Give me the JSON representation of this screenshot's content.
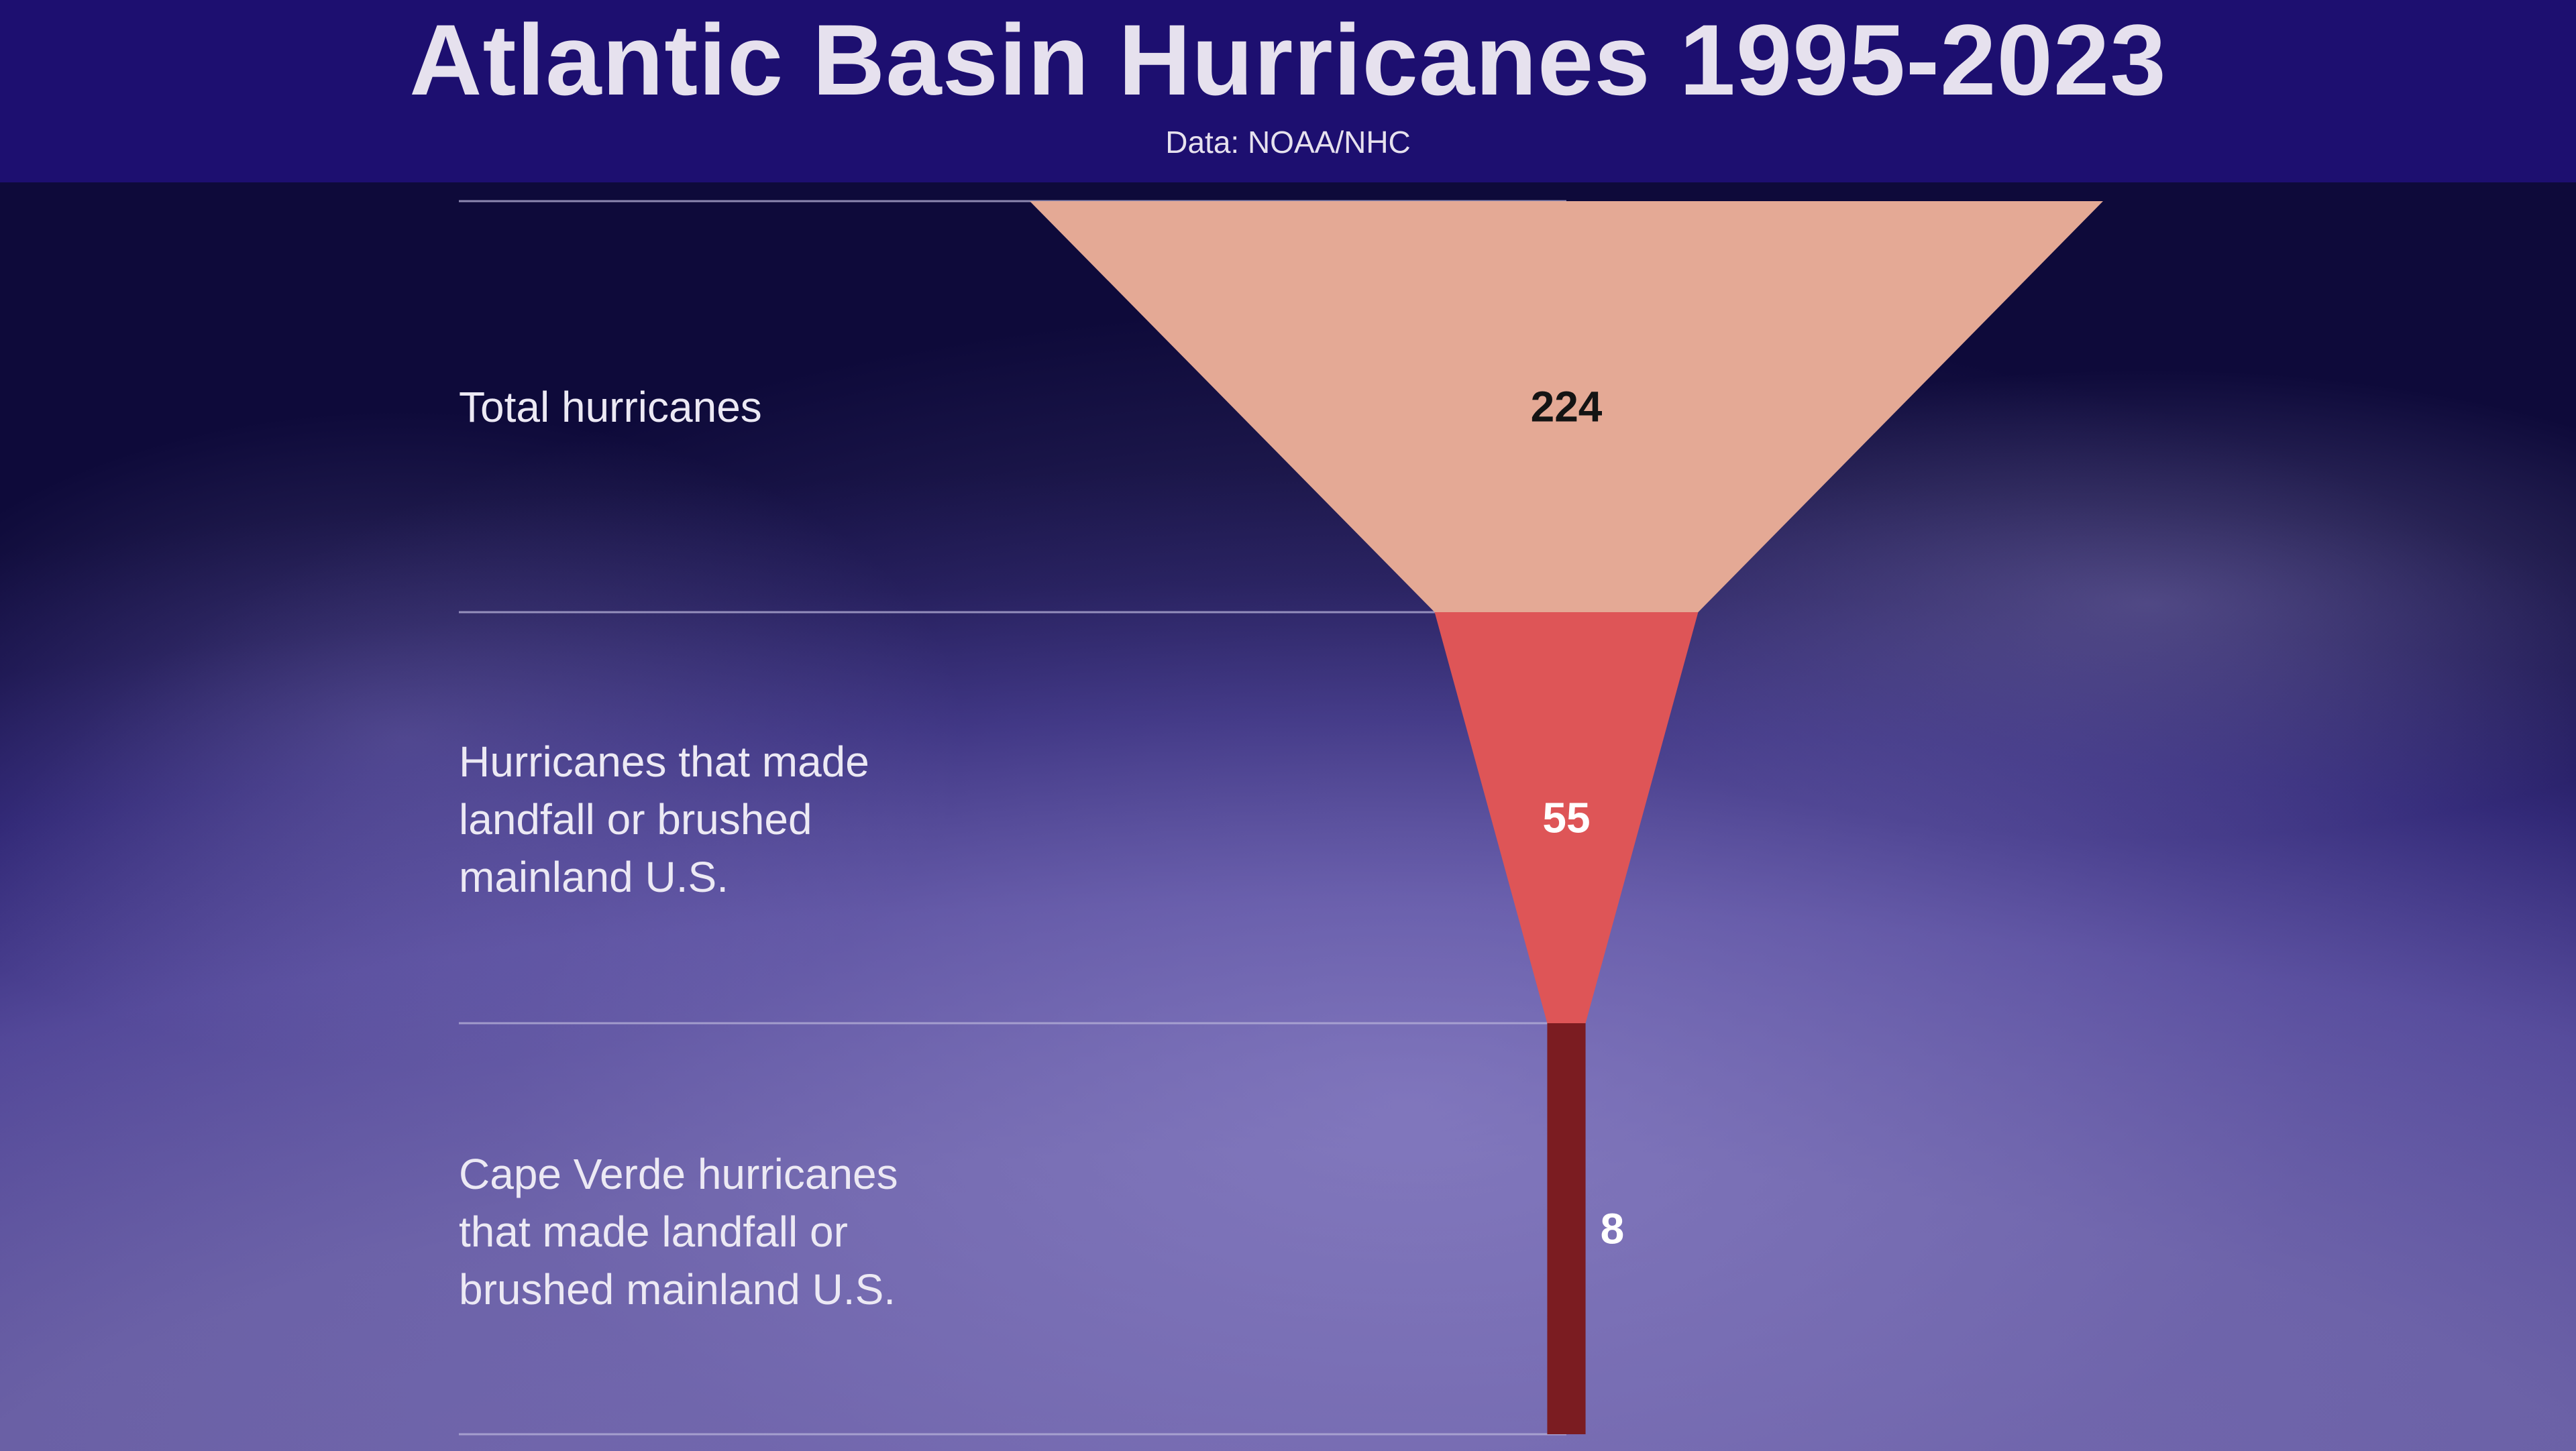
{
  "header": {
    "title": "Atlantic Basin Hurricanes 1995-2023",
    "subtitle": "Data: NOAA/NHC"
  },
  "chart_data": {
    "type": "funnel",
    "title": "Atlantic Basin Hurricanes 1995-2023",
    "subtitle": "Data: NOAA/NHC",
    "stages": [
      {
        "label": "Total hurricanes",
        "value": 224,
        "color": "#e4a995",
        "value_color": "#141414"
      },
      {
        "label": "Hurricanes that made landfall or brushed mainland U.S.",
        "value": 55,
        "color": "#de5557",
        "value_color": "#ffffff"
      },
      {
        "label": "Cape Verde hurricanes that made landfall or brushed mainland U.S.",
        "value": 8,
        "color": "#7b1c21",
        "value_color": "#ffffff"
      }
    ]
  },
  "colors": {
    "header_background": "#1d0f70",
    "text": "#ece9f4",
    "separator": "#b7b1d8"
  }
}
